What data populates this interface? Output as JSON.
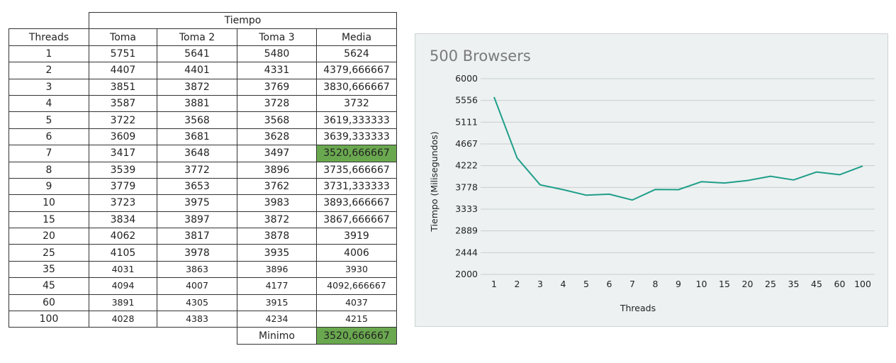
{
  "table": {
    "group_header": "Tiempo",
    "columns": [
      "Threads",
      "Toma",
      "Toma 2",
      "Toma 3",
      "Media"
    ],
    "rows": [
      [
        "1",
        "5751",
        "5641",
        "5480",
        "5624"
      ],
      [
        "2",
        "4407",
        "4401",
        "4331",
        "4379,666667"
      ],
      [
        "3",
        "3851",
        "3872",
        "3769",
        "3830,666667"
      ],
      [
        "4",
        "3587",
        "3881",
        "3728",
        "3732"
      ],
      [
        "5",
        "3722",
        "3568",
        "3568",
        "3619,333333"
      ],
      [
        "6",
        "3609",
        "3681",
        "3628",
        "3639,333333"
      ],
      [
        "7",
        "3417",
        "3648",
        "3497",
        "3520,666667"
      ],
      [
        "8",
        "3539",
        "3772",
        "3896",
        "3735,666667"
      ],
      [
        "9",
        "3779",
        "3653",
        "3762",
        "3731,333333"
      ],
      [
        "10",
        "3723",
        "3975",
        "3983",
        "3893,666667"
      ],
      [
        "15",
        "3834",
        "3897",
        "3872",
        "3867,666667"
      ],
      [
        "20",
        "4062",
        "3817",
        "3878",
        "3919"
      ],
      [
        "25",
        "4105",
        "3978",
        "3935",
        "4006"
      ],
      [
        "35",
        "4031",
        "3863",
        "3896",
        "3930"
      ],
      [
        "45",
        "4094",
        "4007",
        "4177",
        "4092,666667"
      ],
      [
        "60",
        "3891",
        "4305",
        "3915",
        "4037"
      ],
      [
        "100",
        "4028",
        "4383",
        "4234",
        "4215"
      ]
    ],
    "highlight_row_index": 6,
    "highlight_color": "#6aa84f",
    "min_label": "Minimo",
    "min_value": "3520,666667"
  },
  "chart_data": {
    "type": "line",
    "title": "500 Browsers",
    "xlabel": "Threads",
    "ylabel": "Tiempo (Milisegundos)",
    "categories": [
      "1",
      "2",
      "3",
      "4",
      "5",
      "6",
      "7",
      "8",
      "9",
      "10",
      "15",
      "20",
      "25",
      "35",
      "45",
      "60",
      "100"
    ],
    "series": [
      {
        "values": [
          5624,
          4379.67,
          3830.67,
          3732,
          3619.33,
          3639.33,
          3520.67,
          3735.67,
          3731.33,
          3893.67,
          3867.67,
          3919,
          4006,
          3930,
          4092.67,
          4037,
          4215
        ]
      }
    ],
    "y_ticks": [
      "6000",
      "5556",
      "5111",
      "4667",
      "4222",
      "3778",
      "3333",
      "2889",
      "2444",
      "2000"
    ],
    "ylim": [
      2000,
      6000
    ],
    "grid": true,
    "legend": "none",
    "line_color": "#1f9e8a",
    "background_color": "#edf1f1"
  }
}
